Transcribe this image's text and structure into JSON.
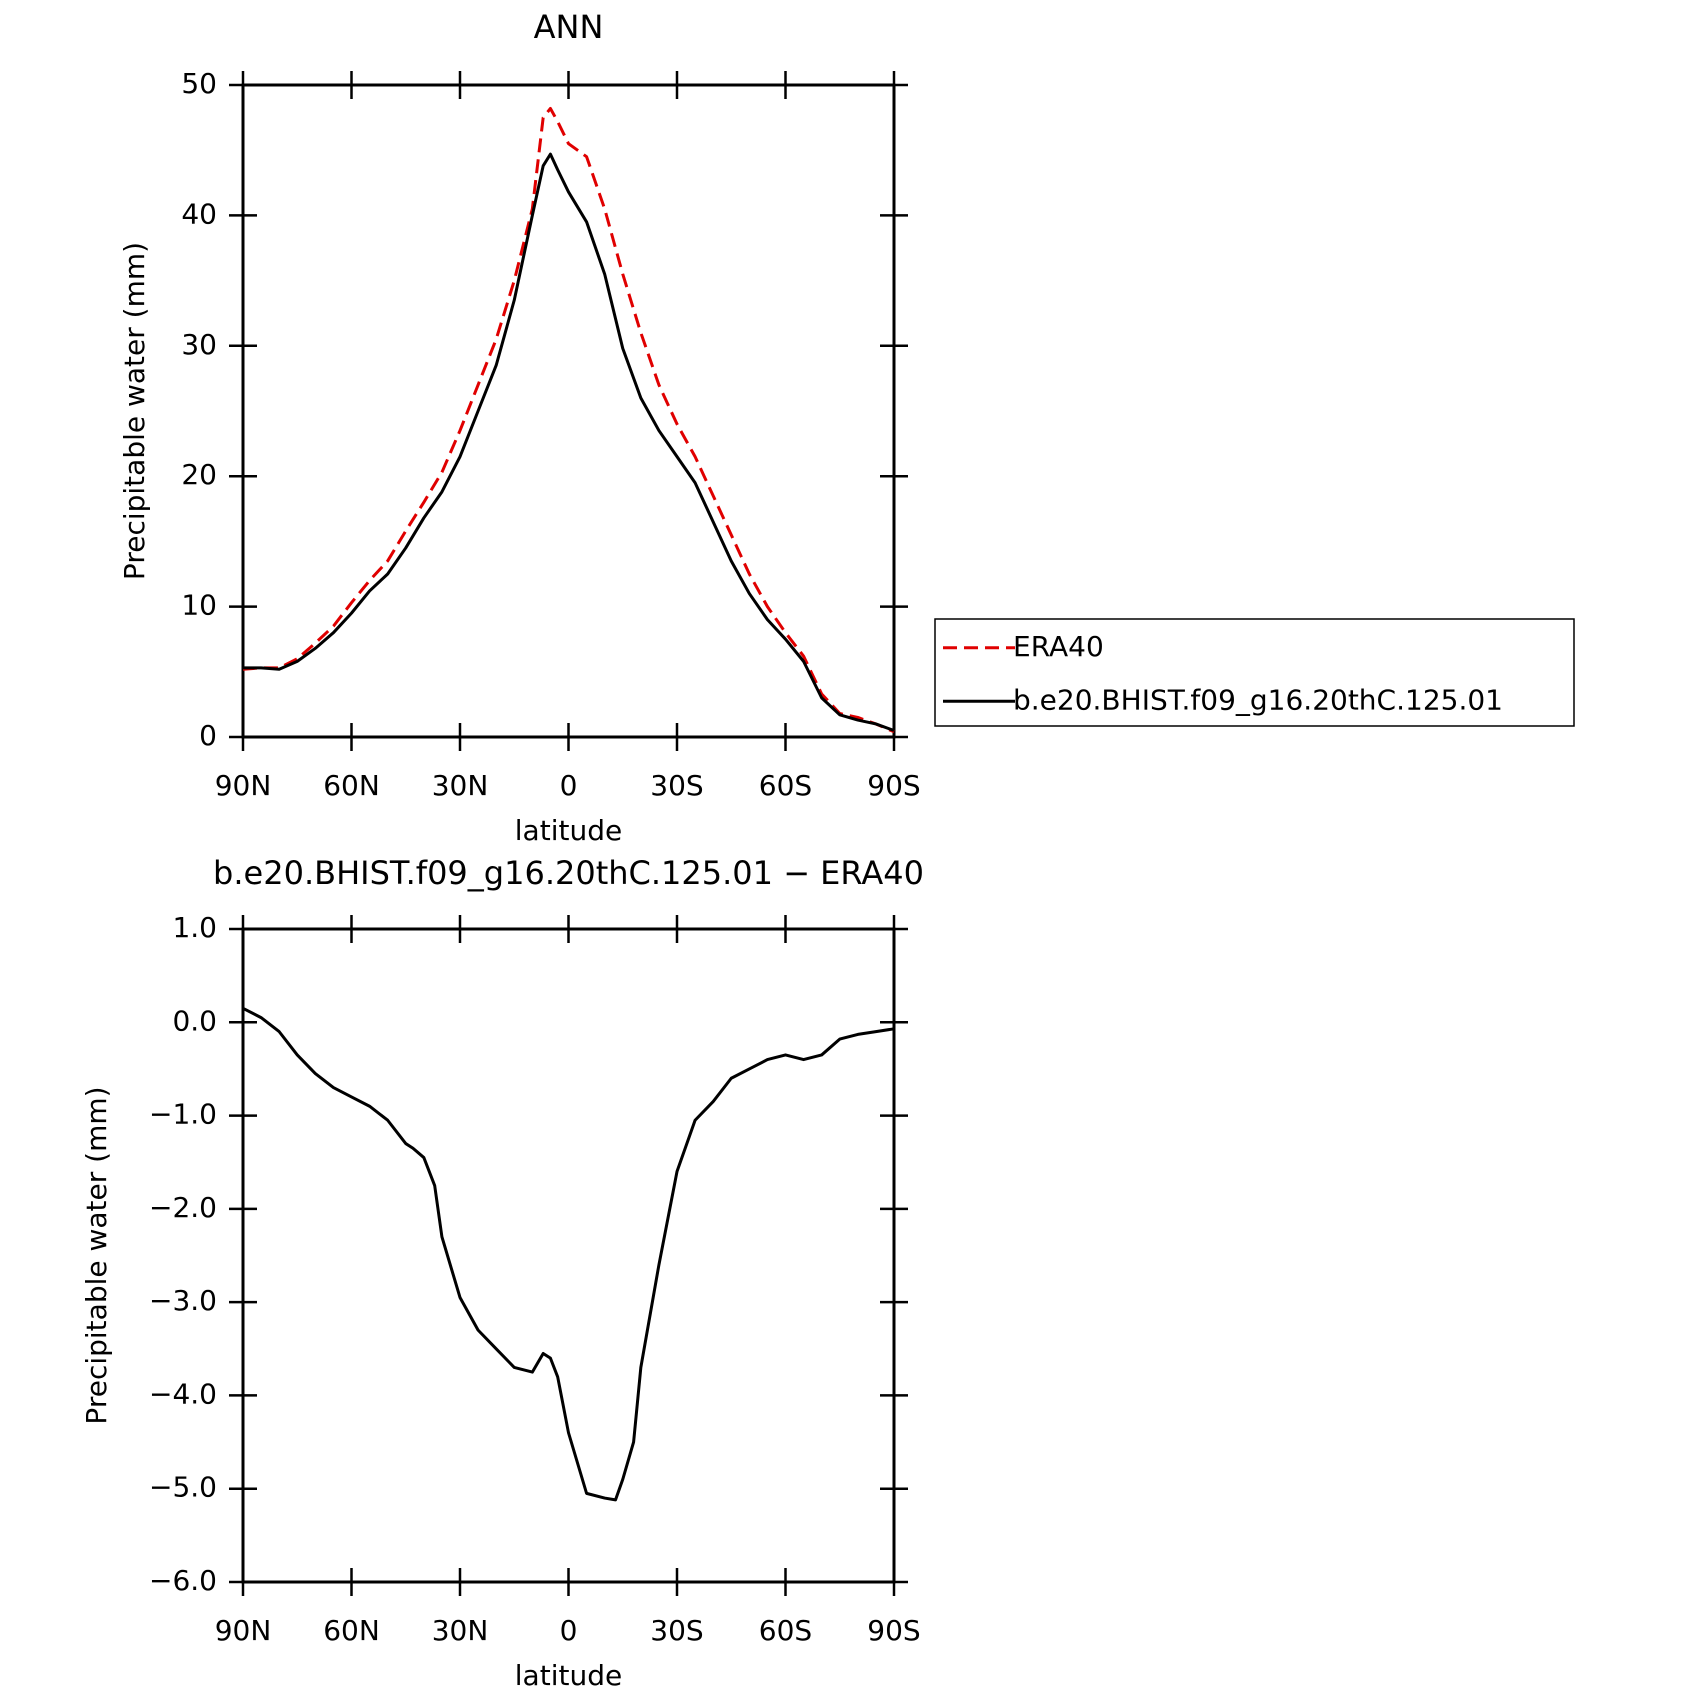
{
  "chart_data": [
    {
      "type": "line",
      "title": "ANN",
      "xlabel": "latitude",
      "ylabel": "Precipitable water (mm)",
      "x": [
        90,
        85,
        80,
        75,
        70,
        65,
        60,
        55,
        50,
        45,
        40,
        35,
        30,
        25,
        20,
        15,
        10,
        7,
        5,
        3,
        0,
        -5,
        -10,
        -15,
        -20,
        -25,
        -30,
        -35,
        -40,
        -45,
        -50,
        -55,
        -60,
        -65,
        -70,
        -75,
        -80,
        -85,
        -90
      ],
      "xlim": [
        90,
        -90
      ],
      "xticks": [
        {
          "value": 90,
          "label": "90N"
        },
        {
          "value": 60,
          "label": "60N"
        },
        {
          "value": 30,
          "label": "30N"
        },
        0,
        {
          "value": -30,
          "label": "30S"
        },
        {
          "value": -60,
          "label": "60S"
        },
        {
          "value": -90,
          "label": "90S"
        }
      ],
      "ylim": [
        0,
        50
      ],
      "yticks": [
        0,
        10,
        20,
        30,
        40,
        50
      ],
      "legend": "right",
      "series": [
        {
          "name": "ERA40",
          "color": "#e00000",
          "linestyle": "dashed",
          "values": [
            5.2,
            5.3,
            5.3,
            6.0,
            7.2,
            8.5,
            10.3,
            12.0,
            13.5,
            15.8,
            18.0,
            20.3,
            23.5,
            27.0,
            30.5,
            35.0,
            40.5,
            47.5,
            48.2,
            47.2,
            45.5,
            44.5,
            40.5,
            35.5,
            31.0,
            27.0,
            24.0,
            21.5,
            18.5,
            15.5,
            12.5,
            10.0,
            8.0,
            6.2,
            3.3,
            1.8,
            1.5,
            1.0,
            0.4
          ]
        },
        {
          "name": "b.e20.BHIST.f09_g16.20thC.125.01",
          "color": "#000000",
          "linestyle": "solid",
          "values": [
            5.3,
            5.3,
            5.2,
            5.8,
            6.8,
            8.0,
            9.5,
            11.2,
            12.5,
            14.5,
            16.8,
            18.8,
            21.5,
            25.0,
            28.5,
            33.5,
            40.0,
            43.8,
            44.7,
            43.5,
            41.8,
            39.5,
            35.5,
            29.8,
            26.0,
            23.5,
            21.5,
            19.5,
            16.5,
            13.5,
            11.0,
            9.0,
            7.5,
            5.8,
            3.0,
            1.7,
            1.3,
            1.0,
            0.5
          ]
        }
      ]
    },
    {
      "type": "line",
      "title": "b.e20.BHIST.f09_g16.20thC.125.01 − ERA40",
      "xlabel": "latitude",
      "ylabel": "Precipitable water (mm)",
      "x": [
        90,
        85,
        80,
        75,
        70,
        65,
        60,
        55,
        50,
        45,
        43,
        40,
        37,
        35,
        30,
        25,
        20,
        15,
        10,
        7,
        5,
        3,
        0,
        -5,
        -10,
        -13,
        -15,
        -18,
        -20,
        -25,
        -30,
        -35,
        -40,
        -45,
        -50,
        -55,
        -60,
        -65,
        -70,
        -75,
        -80,
        -85,
        -90
      ],
      "xlim": [
        90,
        -90
      ],
      "xticks": [
        {
          "value": 90,
          "label": "90N"
        },
        {
          "value": 60,
          "label": "60N"
        },
        {
          "value": 30,
          "label": "30N"
        },
        0,
        {
          "value": -30,
          "label": "30S"
        },
        {
          "value": -60,
          "label": "60S"
        },
        {
          "value": -90,
          "label": "90S"
        }
      ],
      "ylim": [
        -6,
        1
      ],
      "yticks": [
        {
          "value": 1,
          "label": "1.0"
        },
        {
          "value": 0,
          "label": "0.0"
        },
        {
          "value": -1,
          "label": "−1.0"
        },
        {
          "value": -2,
          "label": "−2.0"
        },
        {
          "value": -3,
          "label": "−3.0"
        },
        {
          "value": -4,
          "label": "−4.0"
        },
        {
          "value": -5,
          "label": "−5.0"
        },
        {
          "value": -6,
          "label": "−6.0"
        }
      ],
      "series": [
        {
          "color": "#000000",
          "linestyle": "solid",
          "values": [
            0.15,
            0.05,
            -0.1,
            -0.35,
            -0.55,
            -0.7,
            -0.8,
            -0.9,
            -1.05,
            -1.3,
            -1.35,
            -1.45,
            -1.75,
            -2.3,
            -2.95,
            -3.3,
            -3.5,
            -3.7,
            -3.75,
            -3.55,
            -3.6,
            -3.8,
            -4.4,
            -5.05,
            -5.1,
            -5.12,
            -4.9,
            -4.5,
            -3.7,
            -2.6,
            -1.6,
            -1.05,
            -0.85,
            -0.6,
            -0.5,
            -0.4,
            -0.35,
            -0.4,
            -0.35,
            -0.18,
            -0.13,
            -0.1,
            -0.07
          ]
        }
      ]
    }
  ]
}
